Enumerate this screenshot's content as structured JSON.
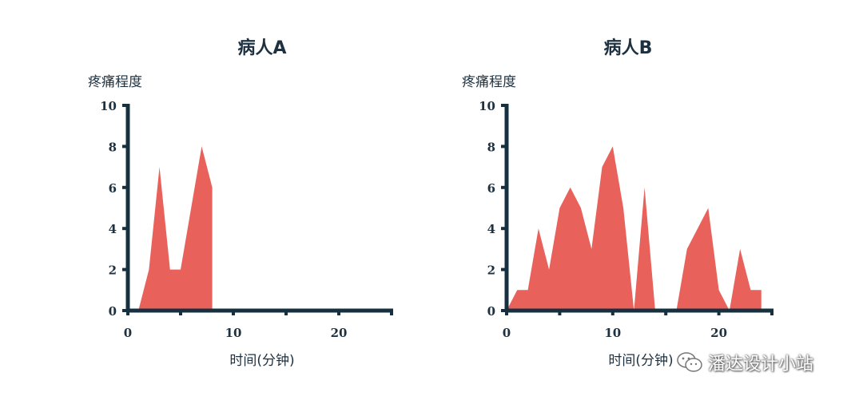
{
  "chart_data": [
    {
      "type": "area",
      "title": "病人A",
      "ylabel": "疼痛程度",
      "xlabel": "时间(分钟)",
      "xlim": [
        0,
        25
      ],
      "ylim": [
        0,
        10
      ],
      "xticks": [
        0,
        10,
        20
      ],
      "yticks": [
        0,
        2,
        4,
        6,
        8,
        10
      ],
      "color": "#e8615a",
      "x": [
        1,
        2,
        3,
        4,
        5,
        6,
        7,
        8,
        8
      ],
      "y": [
        0,
        2,
        7,
        2,
        2,
        5,
        8,
        6,
        0
      ]
    },
    {
      "type": "area",
      "title": "病人B",
      "ylabel": "疼痛程度",
      "xlabel": "时间(分钟)",
      "xlim": [
        0,
        25
      ],
      "ylim": [
        0,
        10
      ],
      "xticks": [
        0,
        10,
        20
      ],
      "yticks": [
        0,
        2,
        4,
        6,
        8,
        10
      ],
      "color": "#e8615a",
      "x": [
        0,
        1,
        2,
        3,
        4,
        5,
        6,
        7,
        8,
        9,
        10,
        11,
        12,
        13,
        14,
        15,
        16,
        17,
        18,
        19,
        20,
        21,
        22,
        23,
        24,
        24
      ],
      "y": [
        0,
        1,
        1,
        4,
        2,
        5,
        6,
        5,
        3,
        7,
        8,
        5,
        0,
        6,
        0,
        0,
        0,
        3,
        4,
        5,
        1,
        0,
        3,
        1,
        1,
        0
      ]
    }
  ],
  "watermark": {
    "icon": "wechat-icon",
    "text": "潘达设计小站"
  }
}
